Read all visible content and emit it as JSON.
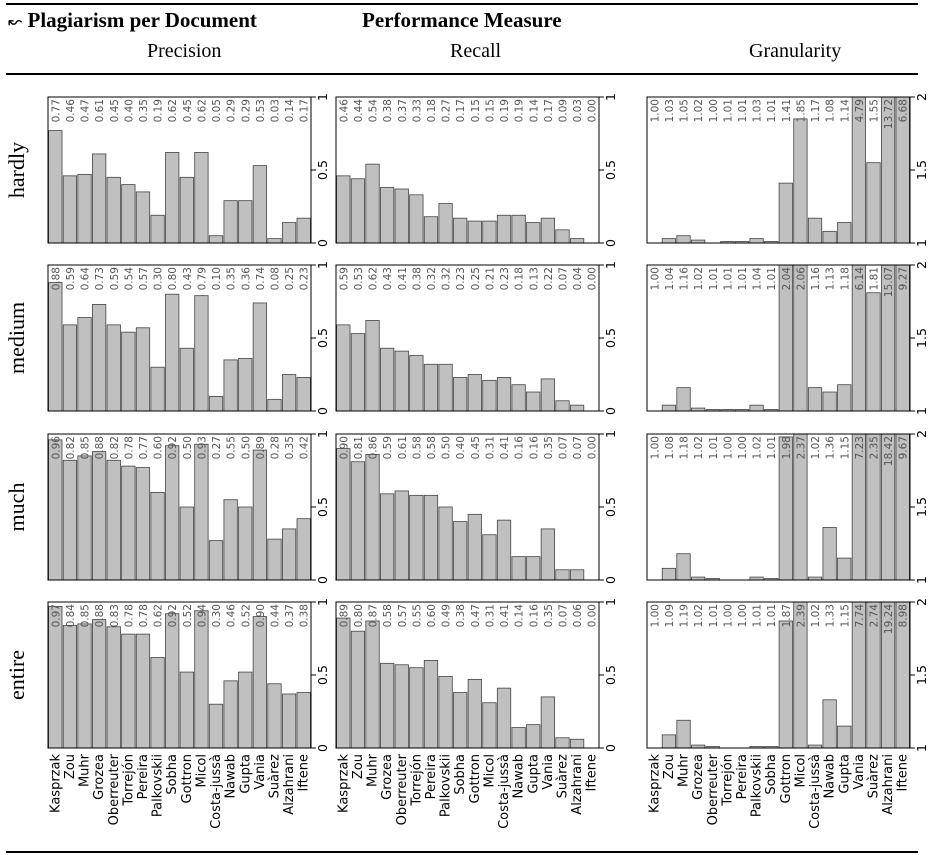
{
  "header": {
    "arrow": "↜",
    "title": "Plagiarism per Document",
    "measure_title": "Performance Measure",
    "cols": [
      "Precision",
      "Recall",
      "Granularity"
    ]
  },
  "chart_data": {
    "type": "bar",
    "categories": [
      "Kasprzak",
      "Zou",
      "Muhr",
      "Grozea",
      "Oberreuter",
      "Torrejón",
      "Pereira",
      "Palkovskii",
      "Sobha",
      "Gottron",
      "Micol",
      "Costa-jussà",
      "Nawab",
      "Gupta",
      "Vania",
      "Suàrez",
      "Alzahrani",
      "Iftene"
    ],
    "row_labels": [
      "hardly",
      "medium",
      "much",
      "entire"
    ],
    "colors": {
      "bar": "#c0c0c0",
      "edge": "#000000"
    },
    "panels": {
      "precision": {
        "ylim": [
          0,
          1
        ],
        "ticks": [
          "0",
          "0.5",
          "1"
        ],
        "rows": [
          [
            0.77,
            0.46,
            0.47,
            0.61,
            0.45,
            0.4,
            0.35,
            0.19,
            0.62,
            0.45,
            0.62,
            0.05,
            0.29,
            0.29,
            0.53,
            0.03,
            0.14,
            0.17
          ],
          [
            0.88,
            0.59,
            0.64,
            0.73,
            0.59,
            0.54,
            0.57,
            0.3,
            0.8,
            0.43,
            0.79,
            0.1,
            0.35,
            0.36,
            0.74,
            0.08,
            0.25,
            0.23
          ],
          [
            0.96,
            0.82,
            0.85,
            0.88,
            0.82,
            0.78,
            0.77,
            0.6,
            0.92,
            0.5,
            0.93,
            0.27,
            0.55,
            0.5,
            0.89,
            0.28,
            0.35,
            0.42
          ],
          [
            0.97,
            0.84,
            0.85,
            0.88,
            0.83,
            0.78,
            0.78,
            0.62,
            0.92,
            0.52,
            0.94,
            0.3,
            0.46,
            0.52,
            0.9,
            0.44,
            0.37,
            0.38
          ]
        ]
      },
      "recall": {
        "ylim": [
          0,
          1
        ],
        "ticks": [
          "0",
          "0.5",
          "1"
        ],
        "rows": [
          [
            0.46,
            0.44,
            0.54,
            0.38,
            0.37,
            0.33,
            0.18,
            0.27,
            0.17,
            0.15,
            0.15,
            0.19,
            0.19,
            0.14,
            0.17,
            0.09,
            0.03,
            0.0
          ],
          [
            0.59,
            0.53,
            0.62,
            0.43,
            0.41,
            0.38,
            0.32,
            0.32,
            0.23,
            0.25,
            0.21,
            0.23,
            0.18,
            0.13,
            0.22,
            0.07,
            0.04,
            0.0
          ],
          [
            0.9,
            0.81,
            0.86,
            0.59,
            0.61,
            0.58,
            0.58,
            0.5,
            0.4,
            0.45,
            0.31,
            0.41,
            0.16,
            0.16,
            0.35,
            0.07,
            0.07,
            0.0
          ],
          [
            0.89,
            0.8,
            0.87,
            0.58,
            0.57,
            0.55,
            0.6,
            0.49,
            0.38,
            0.47,
            0.31,
            0.41,
            0.14,
            0.16,
            0.35,
            0.07,
            0.06,
            0.0
          ]
        ]
      },
      "granularity": {
        "ylim": [
          1,
          2
        ],
        "ticks": [
          "1",
          "1.5",
          "2"
        ],
        "rows": [
          [
            1.0,
            1.03,
            1.05,
            1.02,
            1.0,
            1.01,
            1.01,
            1.03,
            1.01,
            1.41,
            1.85,
            1.17,
            1.08,
            1.14,
            4.79,
            1.55,
            13.72,
            6.68
          ],
          [
            1.0,
            1.04,
            1.16,
            1.02,
            1.01,
            1.01,
            1.01,
            1.04,
            1.01,
            2.04,
            2.06,
            1.16,
            1.13,
            1.18,
            6.14,
            1.81,
            15.07,
            9.27
          ],
          [
            1.0,
            1.08,
            1.18,
            1.02,
            1.01,
            1.0,
            1.0,
            1.02,
            1.01,
            1.98,
            2.37,
            1.02,
            1.36,
            1.15,
            7.23,
            2.35,
            18.42,
            9.67
          ],
          [
            1.0,
            1.09,
            1.19,
            1.02,
            1.01,
            1.0,
            1.0,
            1.01,
            1.01,
            1.87,
            2.39,
            1.02,
            1.33,
            1.15,
            7.74,
            2.74,
            19.24,
            8.98
          ]
        ]
      }
    }
  }
}
